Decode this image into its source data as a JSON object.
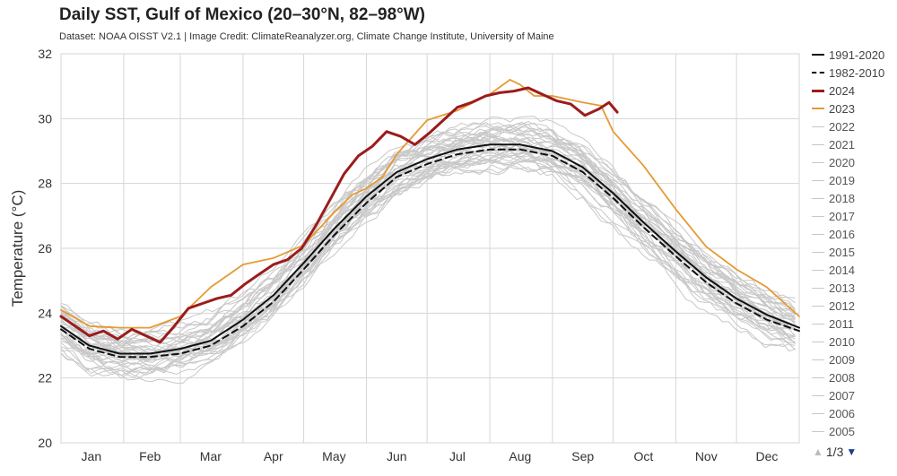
{
  "page": {
    "title": "Daily SST, Gulf of Mexico (20–30°N, 82–98°W)",
    "subtitle": "Dataset: NOAA OISST V2.1 | Image Credit: ClimateReanalyzer.org, Climate Change Institute, University of Maine"
  },
  "pager": {
    "label": "1/3",
    "up_icon": "triangle-up-icon",
    "down_icon": "triangle-down-icon"
  },
  "chart_data": {
    "type": "line",
    "title": "Daily SST, Gulf of Mexico (20–30°N, 82–98°W)",
    "xlabel": "",
    "ylabel": "Temperature (°C)",
    "ylim": [
      20,
      32
    ],
    "yticks": [
      20,
      22,
      24,
      26,
      28,
      30,
      32
    ],
    "xlim": [
      1,
      366
    ],
    "months": [
      {
        "label": "Jan",
        "center": 16
      },
      {
        "label": "Feb",
        "center": 45
      },
      {
        "label": "Mar",
        "center": 75
      },
      {
        "label": "Apr",
        "center": 106
      },
      {
        "label": "May",
        "center": 136
      },
      {
        "label": "Jun",
        "center": 167
      },
      {
        "label": "Jul",
        "center": 197
      },
      {
        "label": "Aug",
        "center": 228
      },
      {
        "label": "Sep",
        "center": 259
      },
      {
        "label": "Oct",
        "center": 289
      },
      {
        "label": "Nov",
        "center": 320
      },
      {
        "label": "Dec",
        "center": 350
      }
    ],
    "month_boundaries": [
      1,
      32,
      60,
      91,
      121,
      152,
      182,
      213,
      244,
      274,
      305,
      335,
      366
    ],
    "grid": true,
    "legend_position": "right",
    "series": [
      {
        "name": "1991-2020",
        "style": "solid",
        "color": "#111111",
        "x": [
          1,
          15,
          30,
          45,
          60,
          75,
          91,
          106,
          121,
          136,
          152,
          167,
          182,
          197,
          213,
          228,
          244,
          259,
          274,
          289,
          305,
          320,
          335,
          350,
          366
        ],
        "y": [
          23.6,
          23.0,
          22.75,
          22.75,
          22.9,
          23.15,
          23.8,
          24.55,
          25.55,
          26.6,
          27.6,
          28.35,
          28.75,
          29.05,
          29.2,
          29.2,
          29.0,
          28.5,
          27.7,
          26.8,
          25.9,
          25.1,
          24.45,
          23.95,
          23.55
        ]
      },
      {
        "name": "1982-2010",
        "style": "dashed",
        "color": "#111111",
        "x": [
          1,
          15,
          30,
          45,
          60,
          75,
          91,
          106,
          121,
          136,
          152,
          167,
          182,
          197,
          213,
          228,
          244,
          259,
          274,
          289,
          305,
          320,
          335,
          350,
          366
        ],
        "y": [
          23.5,
          22.9,
          22.65,
          22.65,
          22.75,
          23.0,
          23.6,
          24.35,
          25.35,
          26.4,
          27.4,
          28.2,
          28.6,
          28.9,
          29.05,
          29.05,
          28.85,
          28.35,
          27.55,
          26.65,
          25.75,
          24.95,
          24.3,
          23.8,
          23.45
        ]
      },
      {
        "name": "2024",
        "style": "solid",
        "color": "#9b1c1c",
        "x": [
          1,
          8,
          15,
          22,
          29,
          36,
          43,
          50,
          57,
          64,
          71,
          78,
          85,
          92,
          99,
          106,
          113,
          120,
          127,
          134,
          141,
          148,
          155,
          162,
          169,
          176,
          183,
          190,
          197,
          204,
          211,
          218,
          225,
          232,
          239,
          246,
          253,
          260,
          267,
          272,
          276
        ],
        "y": [
          23.9,
          23.6,
          23.3,
          23.45,
          23.2,
          23.5,
          23.3,
          23.1,
          23.6,
          24.15,
          24.3,
          24.45,
          24.55,
          24.9,
          25.2,
          25.5,
          25.65,
          26.0,
          26.7,
          27.5,
          28.3,
          28.85,
          29.15,
          29.6,
          29.45,
          29.2,
          29.55,
          29.95,
          30.35,
          30.5,
          30.7,
          30.8,
          30.85,
          30.95,
          30.75,
          30.55,
          30.45,
          30.1,
          30.3,
          30.5,
          30.2
        ]
      },
      {
        "name": "2023",
        "style": "solid",
        "color": "#e59a33",
        "x": [
          1,
          15,
          30,
          45,
          60,
          75,
          91,
          106,
          121,
          136,
          145,
          152,
          160,
          167,
          182,
          197,
          213,
          223,
          228,
          235,
          244,
          259,
          268,
          274,
          289,
          305,
          320,
          335,
          350,
          366
        ],
        "y": [
          24.1,
          23.6,
          23.55,
          23.55,
          23.9,
          24.8,
          25.5,
          25.7,
          26.1,
          27.1,
          27.65,
          27.85,
          28.2,
          28.9,
          29.95,
          30.25,
          30.75,
          31.2,
          31.05,
          30.7,
          30.7,
          30.5,
          30.4,
          29.6,
          28.55,
          27.2,
          26.05,
          25.35,
          24.8,
          23.9
        ]
      }
    ],
    "background_years": [
      "2022",
      "2021",
      "2020",
      "2019",
      "2018",
      "2017",
      "2016",
      "2015",
      "2014",
      "2013",
      "2012",
      "2011",
      "2010",
      "2009",
      "2008",
      "2007",
      "2006",
      "2005"
    ],
    "background_color": "#c8c8c8"
  },
  "legend": {
    "items": [
      {
        "label": "1991-2020",
        "color": "#111111",
        "style": "solid",
        "width": 2
      },
      {
        "label": "1982-2010",
        "color": "#111111",
        "style": "dashed",
        "width": 2
      },
      {
        "label": "2024",
        "color": "#9b1c1c",
        "style": "solid",
        "width": 3
      },
      {
        "label": "2023",
        "color": "#e59a33",
        "style": "solid",
        "width": 2
      },
      {
        "label": "2022",
        "color": "#c8c8c8",
        "style": "solid",
        "width": 1
      },
      {
        "label": "2021",
        "color": "#c8c8c8",
        "style": "solid",
        "width": 1
      },
      {
        "label": "2020",
        "color": "#c8c8c8",
        "style": "solid",
        "width": 1
      },
      {
        "label": "2019",
        "color": "#c8c8c8",
        "style": "solid",
        "width": 1
      },
      {
        "label": "2018",
        "color": "#c8c8c8",
        "style": "solid",
        "width": 1
      },
      {
        "label": "2017",
        "color": "#c8c8c8",
        "style": "solid",
        "width": 1
      },
      {
        "label": "2016",
        "color": "#c8c8c8",
        "style": "solid",
        "width": 1
      },
      {
        "label": "2015",
        "color": "#c8c8c8",
        "style": "solid",
        "width": 1
      },
      {
        "label": "2014",
        "color": "#c8c8c8",
        "style": "solid",
        "width": 1
      },
      {
        "label": "2013",
        "color": "#c8c8c8",
        "style": "solid",
        "width": 1
      },
      {
        "label": "2012",
        "color": "#c8c8c8",
        "style": "solid",
        "width": 1
      },
      {
        "label": "2011",
        "color": "#c8c8c8",
        "style": "solid",
        "width": 1
      },
      {
        "label": "2010",
        "color": "#c8c8c8",
        "style": "solid",
        "width": 1
      },
      {
        "label": "2009",
        "color": "#c8c8c8",
        "style": "solid",
        "width": 1
      },
      {
        "label": "2008",
        "color": "#c8c8c8",
        "style": "solid",
        "width": 1
      },
      {
        "label": "2007",
        "color": "#c8c8c8",
        "style": "solid",
        "width": 1
      },
      {
        "label": "2006",
        "color": "#c8c8c8",
        "style": "solid",
        "width": 1
      },
      {
        "label": "2005",
        "color": "#c8c8c8",
        "style": "solid",
        "width": 1
      }
    ]
  }
}
